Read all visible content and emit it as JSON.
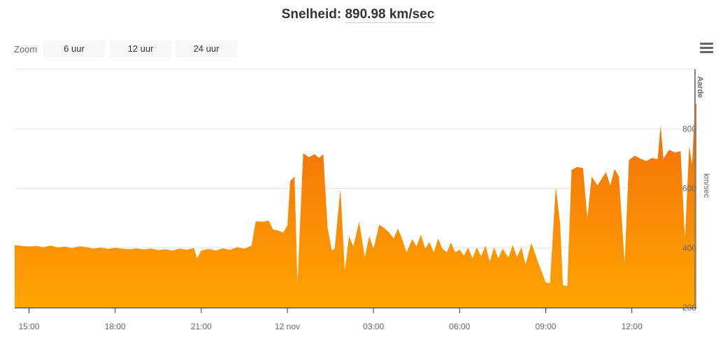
{
  "header": {
    "title_prefix": "Snelheid: ",
    "title_value": "890.98 km/sec"
  },
  "zoom": {
    "label": "Zoom",
    "buttons": [
      "6 uur",
      "12 uur",
      "24 uur"
    ]
  },
  "menu": {
    "icon": "hamburger-menu-icon"
  },
  "colors": {
    "area_top": "#f26a0a",
    "area_bottom": "#ffa500",
    "gridline": "#e6e6e6",
    "plotline": "#808080"
  },
  "chart_data": {
    "type": "area",
    "title": "Snelheid: 890.98 km/sec",
    "ylabel": "km/sec",
    "xlabel": "",
    "ylim": [
      200,
      1000
    ],
    "y_ticks": [
      "200",
      "400",
      "600",
      "800"
    ],
    "y_tick_values": [
      200,
      400,
      600,
      800
    ],
    "x_range_hours": [
      14.5,
      38.25
    ],
    "x_tick_labels": [
      "15:00",
      "18:00",
      "21:00",
      "12 nov",
      "03:00",
      "06:00",
      "09:00",
      "12:00"
    ],
    "x_tick_hours": [
      15,
      18,
      21,
      24,
      27,
      30,
      33,
      36
    ],
    "plot_line": {
      "label": "Aarde",
      "hour": 38.2
    },
    "grid": true,
    "legend": "none",
    "series": [
      {
        "values": [
          [
            14.5,
            410
          ],
          [
            14.75,
            407
          ],
          [
            15.0,
            405
          ],
          [
            15.25,
            407
          ],
          [
            15.5,
            403
          ],
          [
            15.75,
            408
          ],
          [
            16.0,
            402
          ],
          [
            16.25,
            405
          ],
          [
            16.5,
            400
          ],
          [
            16.75,
            406
          ],
          [
            17.0,
            403
          ],
          [
            17.25,
            398
          ],
          [
            17.5,
            402
          ],
          [
            17.75,
            397
          ],
          [
            18.0,
            401
          ],
          [
            18.25,
            398
          ],
          [
            18.5,
            396
          ],
          [
            18.75,
            399
          ],
          [
            19.0,
            395
          ],
          [
            19.25,
            398
          ],
          [
            19.5,
            393
          ],
          [
            19.75,
            396
          ],
          [
            20.0,
            392
          ],
          [
            20.25,
            398
          ],
          [
            20.5,
            394
          ],
          [
            20.75,
            400
          ],
          [
            20.85,
            365
          ],
          [
            21.0,
            392
          ],
          [
            21.25,
            397
          ],
          [
            21.5,
            392
          ],
          [
            21.75,
            399
          ],
          [
            22.0,
            394
          ],
          [
            22.25,
            403
          ],
          [
            22.5,
            398
          ],
          [
            22.75,
            408
          ],
          [
            22.9,
            490
          ],
          [
            23.1,
            488
          ],
          [
            23.35,
            492
          ],
          [
            23.5,
            462
          ],
          [
            23.7,
            458
          ],
          [
            23.85,
            452
          ],
          [
            24.0,
            475
          ],
          [
            24.1,
            625
          ],
          [
            24.25,
            640
          ],
          [
            24.35,
            280
          ],
          [
            24.55,
            718
          ],
          [
            24.75,
            705
          ],
          [
            24.95,
            715
          ],
          [
            25.1,
            702
          ],
          [
            25.25,
            715
          ],
          [
            25.4,
            468
          ],
          [
            25.55,
            392
          ],
          [
            25.65,
            398
          ],
          [
            25.85,
            598
          ],
          [
            26.0,
            325
          ],
          [
            26.15,
            440
          ],
          [
            26.3,
            405
          ],
          [
            26.5,
            488
          ],
          [
            26.7,
            368
          ],
          [
            26.85,
            440
          ],
          [
            27.0,
            398
          ],
          [
            27.2,
            478
          ],
          [
            27.4,
            465
          ],
          [
            27.55,
            452
          ],
          [
            27.7,
            432
          ],
          [
            27.85,
            465
          ],
          [
            28.0,
            430
          ],
          [
            28.15,
            385
          ],
          [
            28.35,
            430
          ],
          [
            28.5,
            405
          ],
          [
            28.65,
            445
          ],
          [
            28.8,
            398
          ],
          [
            28.95,
            420
          ],
          [
            29.1,
            385
          ],
          [
            29.25,
            432
          ],
          [
            29.4,
            398
          ],
          [
            29.55,
            385
          ],
          [
            29.7,
            418
          ],
          [
            29.85,
            385
          ],
          [
            30.0,
            395
          ],
          [
            30.15,
            375
          ],
          [
            30.3,
            402
          ],
          [
            30.45,
            365
          ],
          [
            30.6,
            402
          ],
          [
            30.75,
            372
          ],
          [
            30.9,
            408
          ],
          [
            31.05,
            355
          ],
          [
            31.2,
            402
          ],
          [
            31.35,
            365
          ],
          [
            31.5,
            398
          ],
          [
            31.7,
            368
          ],
          [
            31.85,
            410
          ],
          [
            32.0,
            370
          ],
          [
            32.15,
            402
          ],
          [
            32.3,
            345
          ],
          [
            32.5,
            418
          ],
          [
            32.75,
            348
          ],
          [
            33.0,
            285
          ],
          [
            33.15,
            282
          ],
          [
            33.35,
            605
          ],
          [
            33.5,
            485
          ],
          [
            33.6,
            275
          ],
          [
            33.75,
            272
          ],
          [
            33.9,
            662
          ],
          [
            34.1,
            672
          ],
          [
            34.3,
            668
          ],
          [
            34.45,
            500
          ],
          [
            34.6,
            640
          ],
          [
            34.8,
            610
          ],
          [
            35.0,
            640
          ],
          [
            35.1,
            655
          ],
          [
            35.25,
            610
          ],
          [
            35.4,
            665
          ],
          [
            35.55,
            640
          ],
          [
            35.75,
            350
          ],
          [
            35.9,
            695
          ],
          [
            36.1,
            710
          ],
          [
            36.3,
            700
          ],
          [
            36.5,
            692
          ],
          [
            36.7,
            702
          ],
          [
            36.9,
            698
          ],
          [
            37.0,
            812
          ],
          [
            37.1,
            700
          ],
          [
            37.3,
            730
          ],
          [
            37.5,
            720
          ],
          [
            37.7,
            725
          ],
          [
            37.85,
            430
          ],
          [
            38.0,
            742
          ],
          [
            38.1,
            680
          ],
          [
            38.2,
            885
          ],
          [
            38.25,
            885
          ]
        ]
      }
    ]
  }
}
